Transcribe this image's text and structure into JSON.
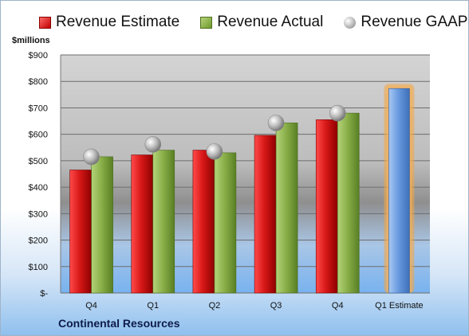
{
  "chart_data": {
    "type": "bar",
    "unit_label": "$millions",
    "company": "Continental Resources",
    "categories": [
      "Q4",
      "Q1",
      "Q2",
      "Q3",
      "Q4",
      "Q1 Estimate"
    ],
    "series": [
      {
        "name": "Revenue Estimate",
        "type": "bar",
        "color": "#d01c1c",
        "values": [
          465,
          522,
          540,
          596,
          655,
          null
        ]
      },
      {
        "name": "Revenue Actual",
        "type": "bar",
        "color": "#8db04a",
        "values": [
          515,
          540,
          530,
          643,
          680,
          null
        ]
      },
      {
        "name": "Revenue GAAP",
        "type": "scatter",
        "color": "#b0b0b0",
        "values": [
          515,
          562,
          535,
          643,
          680,
          null
        ]
      },
      {
        "name": "Revenue Estimate",
        "type": "bar",
        "color": "#5b8fd6",
        "highlight": true,
        "values": [
          null,
          null,
          null,
          null,
          null,
          773
        ]
      }
    ],
    "ylim": [
      0,
      900
    ],
    "yticks": [
      0,
      100,
      200,
      300,
      400,
      500,
      600,
      700,
      800,
      900
    ],
    "ytick_labels": [
      "$-",
      "$100",
      "$200",
      "$300",
      "$400",
      "$500",
      "$600",
      "$700",
      "$800",
      "$900"
    ],
    "grid": true,
    "legend_position": "top"
  }
}
